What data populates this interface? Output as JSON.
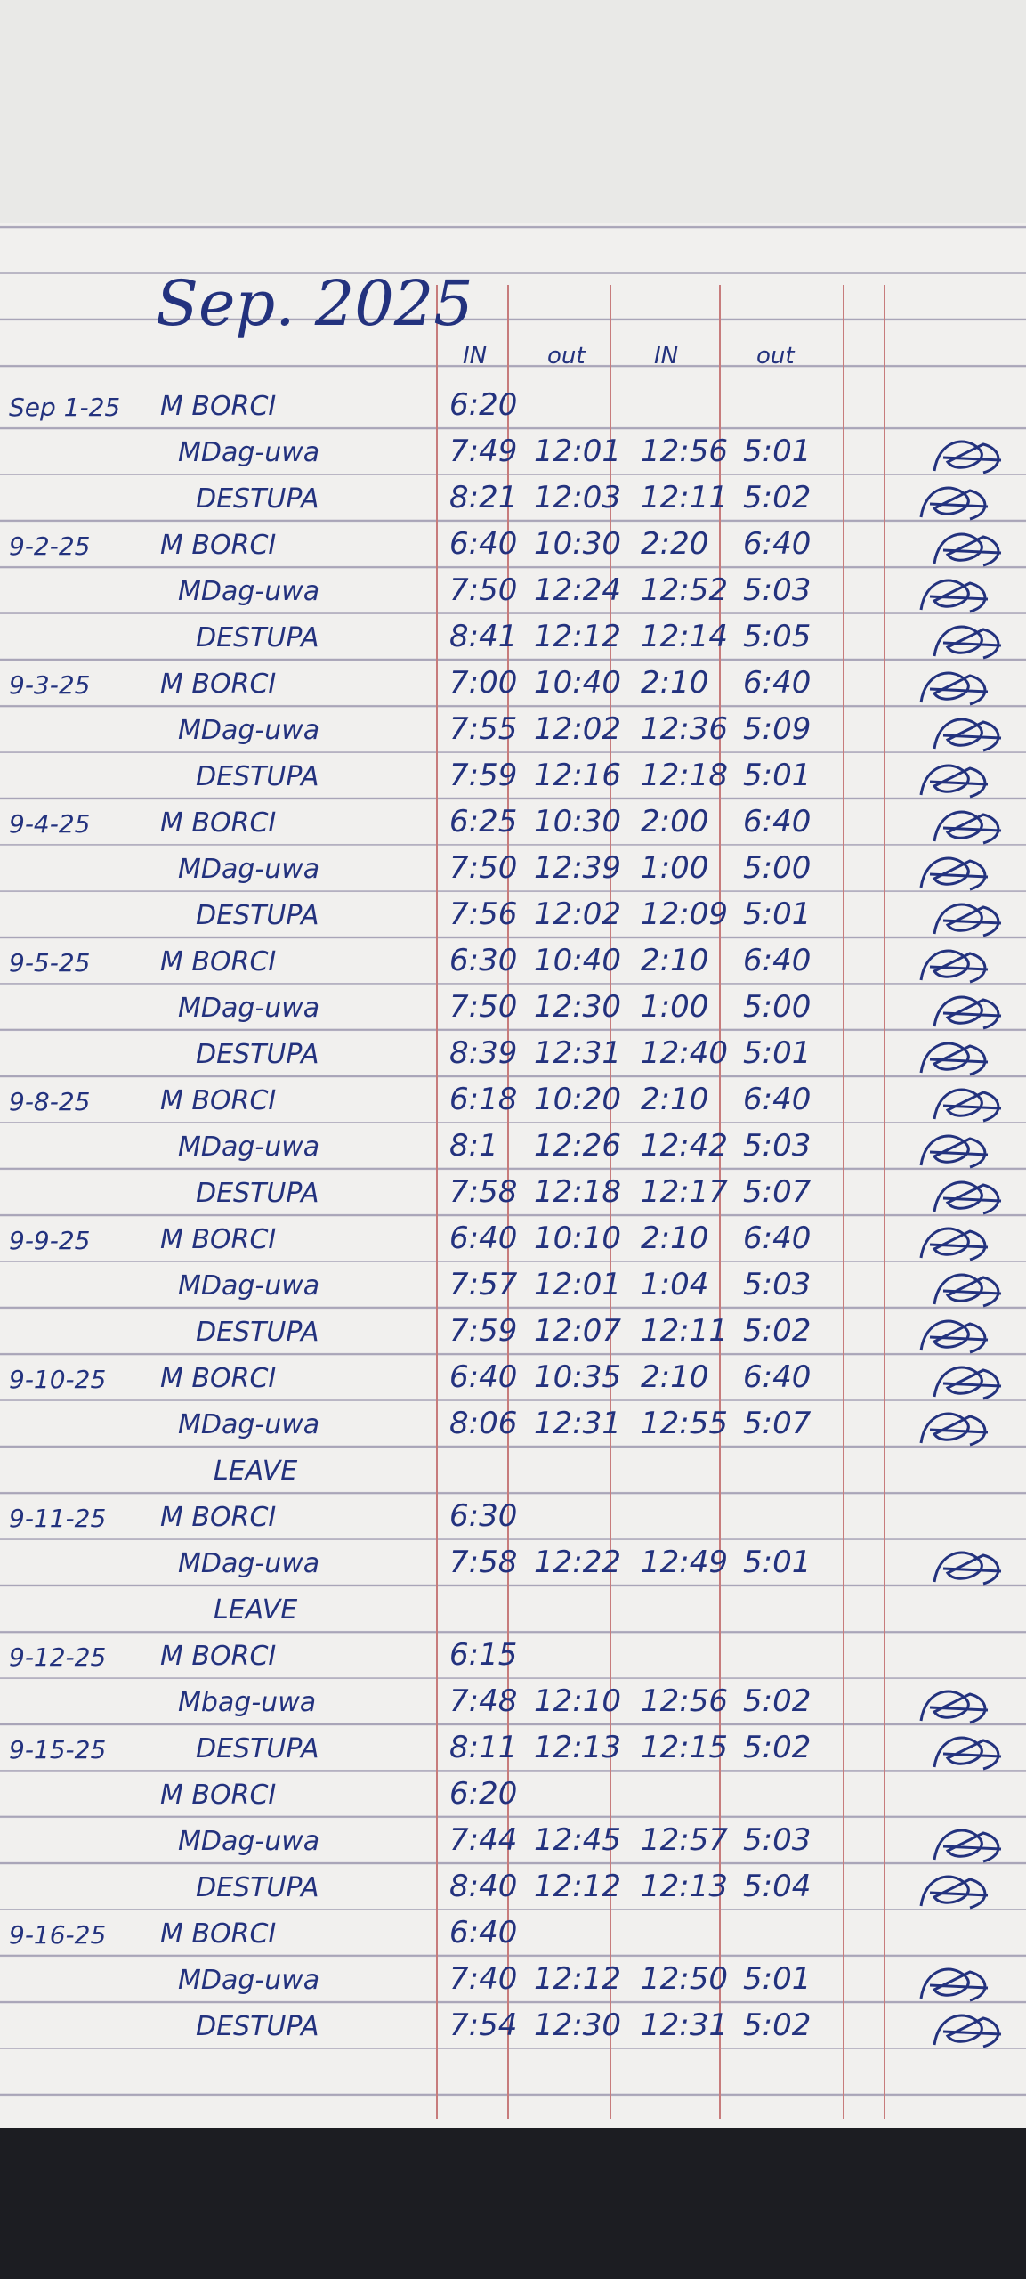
{
  "header": {
    "title": "Sep. 2025",
    "columns": [
      "IN",
      "out",
      "IN",
      "out"
    ]
  },
  "rows": [
    {
      "date": "Sep 1-25",
      "name": "M BORCI",
      "times": [
        "6:20"
      ]
    },
    {
      "name": "MDag-uwa",
      "times": [
        "7:49",
        "12:01",
        "12:56",
        "5:01"
      ]
    },
    {
      "name": "DESTUPA",
      "times": [
        "8:21",
        "12:03",
        "12:11",
        "5:02"
      ]
    },
    {
      "date": "9-2-25",
      "name": "M BORCI",
      "times": [
        "6:40",
        "10:30",
        "2:20",
        "6:40"
      ]
    },
    {
      "name": "MDag-uwa",
      "times": [
        "7:50",
        "12:24",
        "12:52",
        "5:03"
      ]
    },
    {
      "name": "DESTUPA",
      "times": [
        "8:41",
        "12:12",
        "12:14",
        "5:05"
      ]
    },
    {
      "date": "9-3-25",
      "name": "M BORCI",
      "times": [
        "7:00",
        "10:40",
        "2:10",
        "6:40"
      ]
    },
    {
      "name": "MDag-uwa",
      "times": [
        "7:55",
        "12:02",
        "12:36",
        "5:09"
      ]
    },
    {
      "name": "DESTUPA",
      "times": [
        "7:59",
        "12:16",
        "12:18",
        "5:01"
      ]
    },
    {
      "date": "9-4-25",
      "name": "M BORCI",
      "times": [
        "6:25",
        "10:30",
        "2:00",
        "6:40"
      ]
    },
    {
      "name": "MDag-uwa",
      "times": [
        "7:50",
        "12:39",
        "1:00",
        "5:00"
      ]
    },
    {
      "name": "DESTUPA",
      "times": [
        "7:56",
        "12:02",
        "12:09",
        "5:01"
      ]
    },
    {
      "date": "9-5-25",
      "name": "M BORCI",
      "times": [
        "6:30",
        "10:40",
        "2:10",
        "6:40"
      ]
    },
    {
      "name": "MDag-uwa",
      "times": [
        "7:50",
        "12:30",
        "1:00",
        "5:00"
      ]
    },
    {
      "name": "DESTUPA",
      "times": [
        "8:39",
        "12:31",
        "12:40",
        "5:01"
      ]
    },
    {
      "date": "9-8-25",
      "name": "M BORCI",
      "times": [
        "6:18",
        "10:20",
        "2:10",
        "6:40"
      ]
    },
    {
      "name": "MDag-uwa",
      "times": [
        "8:1",
        "12:26",
        "12:42",
        "5:03"
      ]
    },
    {
      "name": "DESTUPA",
      "times": [
        "7:58",
        "12:18",
        "12:17",
        "5:07"
      ]
    },
    {
      "date": "9-9-25",
      "name": "M BORCI",
      "times": [
        "6:40",
        "10:10",
        "2:10",
        "6:40"
      ]
    },
    {
      "name": "MDag-uwa",
      "times": [
        "7:57",
        "12:01",
        "1:04",
        "5:03"
      ]
    },
    {
      "name": "DESTUPA",
      "times": [
        "7:59",
        "12:07",
        "12:11",
        "5:02"
      ]
    },
    {
      "date": "9-10-25",
      "name": "M BORCI",
      "times": [
        "6:40",
        "10:35",
        "2:10",
        "6:40"
      ]
    },
    {
      "name": "MDag-uwa",
      "times": [
        "8:06",
        "12:31",
        "12:55",
        "5:07"
      ]
    },
    {
      "name": "LEAVE"
    },
    {
      "date": "9-11-25",
      "name": "M BORCI",
      "times": [
        "6:30"
      ]
    },
    {
      "name": "MDag-uwa",
      "times": [
        "7:58",
        "12:22",
        "12:49",
        "5:01"
      ]
    },
    {
      "name": "LEAVE"
    },
    {
      "date": "9-12-25",
      "name": "M BORCI",
      "times": [
        "6:15"
      ]
    },
    {
      "name": "Mbag-uwa",
      "times": [
        "7:48",
        "12:10",
        "12:56",
        "5:02"
      ]
    },
    {
      "date": "9-15-25",
      "name": "DESTUPA",
      "times": [
        "8:11",
        "12:13",
        "12:15",
        "5:02"
      ]
    },
    {
      "name": "M BORCI",
      "times": [
        "6:20"
      ]
    },
    {
      "name": "MDag-uwa",
      "times": [
        "7:44",
        "12:45",
        "12:57",
        "5:03"
      ]
    },
    {
      "name": "DESTUPA",
      "times": [
        "8:40",
        "12:12",
        "12:13",
        "5:04"
      ]
    },
    {
      "date": "9-16-25",
      "name": "M BORCI",
      "times": [
        "6:40"
      ]
    },
    {
      "name": "MDag-uwa",
      "times": [
        "7:40",
        "12:12",
        "12:50",
        "5:01"
      ]
    },
    {
      "name": "DESTUPA",
      "times": [
        "7:54",
        "12:30",
        "12:31",
        "5:02"
      ]
    }
  ]
}
